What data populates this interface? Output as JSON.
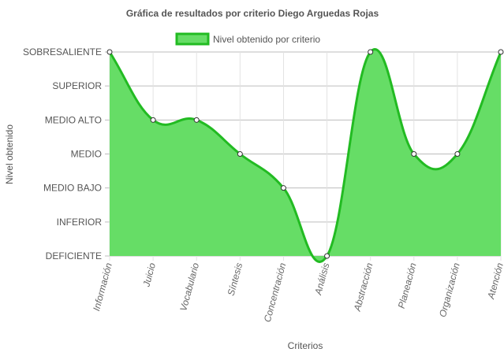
{
  "chart_data": {
    "type": "area",
    "title": "Gráfica de resultados por criterio Diego Arguedas Rojas",
    "xlabel": "Criterios",
    "ylabel": "Nivel obtenido",
    "y_levels": [
      "DEFICIENTE",
      "INFERIOR",
      "MEDIO BAJO",
      "MEDIO",
      "MEDIO ALTO",
      "SUPERIOR",
      "SOBRESALIENTE"
    ],
    "ylim": [
      0,
      6
    ],
    "categories": [
      "Información",
      "Juicio",
      "Vocabulario",
      "Síntesis",
      "Concentración",
      "Análisis",
      "Abstracción",
      "Planeación",
      "Organización",
      "Atención"
    ],
    "series": [
      {
        "name": "Nivel obtenido por criterio",
        "values": [
          6,
          4,
          4,
          3,
          2,
          0,
          6,
          3,
          3,
          6
        ]
      }
    ],
    "legend_position": "top",
    "grid": true,
    "colors": {
      "fill": "#66dd66",
      "line": "#22bb22",
      "point_fill": "#ffffff",
      "point_stroke": "#333333"
    }
  }
}
